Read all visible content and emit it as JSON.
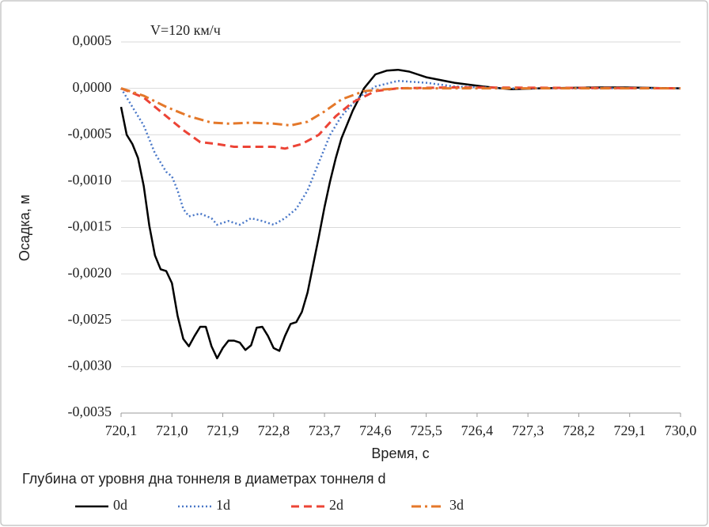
{
  "chart_data": {
    "type": "line",
    "annotation": "V=120 км/ч",
    "ylabel": "Осадка, м",
    "xlabel": "Время, с",
    "legend_title": "Глубина от уровня дна тоннеля в диаметрах тоннеля d",
    "legend": "bottom",
    "grid": true,
    "xlim": [
      720.1,
      730.0
    ],
    "xticks": [
      {
        "value": 720.1,
        "label": "720,1"
      },
      {
        "value": 721.0,
        "label": "721,0"
      },
      {
        "value": 721.9,
        "label": "721,9"
      },
      {
        "value": 722.8,
        "label": "722,8"
      },
      {
        "value": 723.7,
        "label": "723,7"
      },
      {
        "value": 724.6,
        "label": "724,6"
      },
      {
        "value": 725.5,
        "label": "725,5"
      },
      {
        "value": 726.4,
        "label": "726,4"
      },
      {
        "value": 727.3,
        "label": "727,3"
      },
      {
        "value": 728.2,
        "label": "728,2"
      },
      {
        "value": 729.1,
        "label": "729,1"
      },
      {
        "value": 730.0,
        "label": "730,0"
      }
    ],
    "ylim": [
      -0.0035,
      0.0005
    ],
    "yticks": [
      {
        "value": 0.0005,
        "label": "0,0005"
      },
      {
        "value": 0,
        "label": "0,0000"
      },
      {
        "value": -0.0005,
        "label": "-0,0005"
      },
      {
        "value": -0.001,
        "label": "-0,0010"
      },
      {
        "value": -0.0015,
        "label": "-0,0015"
      },
      {
        "value": -0.002,
        "label": "-0,0020"
      },
      {
        "value": -0.0025,
        "label": "-0,0025"
      },
      {
        "value": -0.003,
        "label": "-0,0030"
      },
      {
        "value": -0.0035,
        "label": "-0,0035"
      }
    ],
    "series": [
      {
        "name": "0d",
        "color": "#000000",
        "style": "solid",
        "x": [
          720.1,
          720.2,
          720.3,
          720.4,
          720.5,
          720.6,
          720.7,
          720.8,
          720.9,
          721.0,
          721.1,
          721.2,
          721.3,
          721.4,
          721.5,
          721.6,
          721.7,
          721.8,
          721.9,
          722.0,
          722.1,
          722.2,
          722.3,
          722.4,
          722.5,
          722.6,
          722.7,
          722.8,
          722.9,
          723.0,
          723.1,
          723.2,
          723.3,
          723.4,
          723.5,
          723.6,
          723.7,
          723.8,
          723.9,
          724.0,
          724.2,
          724.4,
          724.6,
          724.8,
          725.0,
          725.2,
          725.5,
          726.0,
          726.5,
          727.0,
          727.5,
          728.5,
          729.0,
          730.0
        ],
        "values": [
          -0.0002,
          -0.0005,
          -0.0006,
          -0.00075,
          -0.00105,
          -0.00148,
          -0.0018,
          -0.00195,
          -0.00197,
          -0.0021,
          -0.00245,
          -0.0027,
          -0.00278,
          -0.00267,
          -0.00257,
          -0.00257,
          -0.00278,
          -0.00291,
          -0.0028,
          -0.00272,
          -0.00272,
          -0.00274,
          -0.00282,
          -0.00277,
          -0.00258,
          -0.00257,
          -0.00267,
          -0.0028,
          -0.00283,
          -0.00267,
          -0.00254,
          -0.00252,
          -0.00241,
          -0.0022,
          -0.0019,
          -0.0016,
          -0.00128,
          -0.001,
          -0.00075,
          -0.00054,
          -0.00024,
          0,
          0.00015,
          0.00019,
          0.0002,
          0.00018,
          0.00012,
          6e-05,
          2e-05,
          -1e-05,
          0,
          1e-05,
          1e-05,
          0
        ]
      },
      {
        "name": "1d",
        "color": "#4a78c8",
        "style": "dotted",
        "x": [
          720.1,
          720.3,
          720.5,
          720.7,
          720.9,
          721.0,
          721.1,
          721.2,
          721.3,
          721.5,
          721.7,
          721.8,
          722.0,
          722.2,
          722.4,
          722.6,
          722.8,
          723.0,
          723.2,
          723.4,
          723.6,
          723.8,
          724.0,
          724.3,
          724.6,
          725.0,
          725.5,
          726.0,
          727.0,
          730.0
        ],
        "values": [
          0,
          -0.0002,
          -0.0004,
          -0.0007,
          -0.0009,
          -0.00095,
          -0.0011,
          -0.0013,
          -0.00138,
          -0.00135,
          -0.0014,
          -0.00147,
          -0.00143,
          -0.00147,
          -0.0014,
          -0.00143,
          -0.00147,
          -0.0014,
          -0.0013,
          -0.0011,
          -0.0008,
          -0.0005,
          -0.0003,
          -0.0001,
          2e-05,
          8e-05,
          6e-05,
          2e-05,
          0,
          0
        ]
      },
      {
        "name": "2d",
        "color": "#ec4436",
        "style": "dashed",
        "x": [
          720.1,
          720.5,
          720.9,
          721.2,
          721.5,
          721.8,
          722.1,
          722.5,
          722.8,
          723.0,
          723.3,
          723.6,
          723.9,
          724.2,
          724.6,
          725.0,
          726.0,
          730.0
        ],
        "values": [
          0,
          -0.0001,
          -0.0003,
          -0.00045,
          -0.00058,
          -0.0006,
          -0.00063,
          -0.00063,
          -0.00063,
          -0.00065,
          -0.0006,
          -0.0005,
          -0.0003,
          -0.00015,
          -3e-05,
          0,
          1e-05,
          0
        ]
      },
      {
        "name": "3d",
        "color": "#e4782a",
        "style": "dashdot",
        "x": [
          720.1,
          720.5,
          720.9,
          721.3,
          721.7,
          722.0,
          722.4,
          722.8,
          723.1,
          723.4,
          723.7,
          724.0,
          724.4,
          725.0,
          726.0,
          730.0
        ],
        "values": [
          0,
          -8e-05,
          -0.0002,
          -0.0003,
          -0.00037,
          -0.00038,
          -0.00037,
          -0.00038,
          -0.0004,
          -0.00036,
          -0.00025,
          -0.00012,
          -3e-05,
          0,
          0,
          0
        ]
      }
    ]
  }
}
